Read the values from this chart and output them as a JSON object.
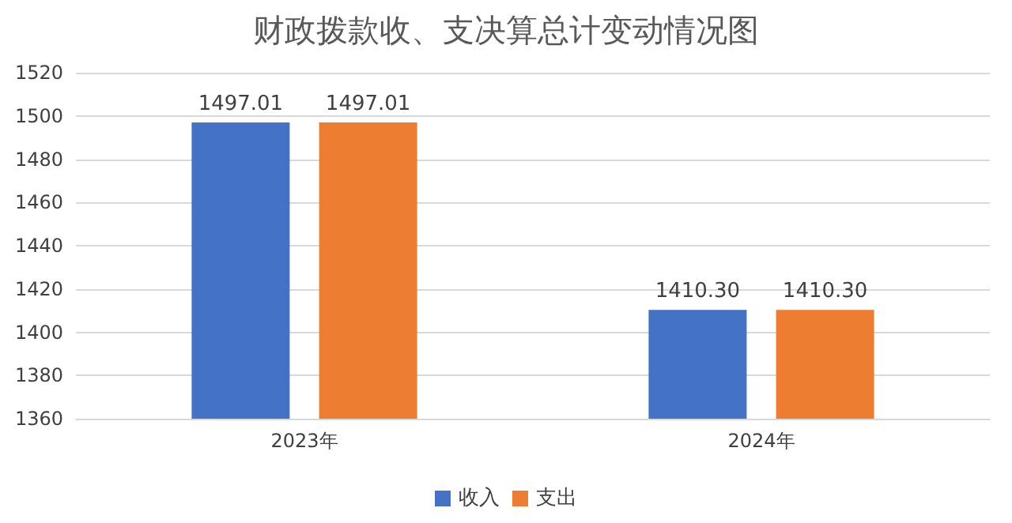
{
  "chart_data": {
    "type": "bar",
    "title": "财政拨款收、支决算总计变动情况图",
    "categories": [
      "2023年",
      "2024年"
    ],
    "series": [
      {
        "name": "收入",
        "color": "#4472c4",
        "values": [
          1497.01,
          1410.3
        ],
        "value_labels": [
          "1497.01",
          "1410.30"
        ]
      },
      {
        "name": "支出",
        "color": "#ed7d31",
        "values": [
          1497.01,
          1410.3
        ],
        "value_labels": [
          "1497.01",
          "1410.30"
        ]
      }
    ],
    "ylim": [
      1360,
      1520
    ],
    "yticks": [
      1360,
      1380,
      1400,
      1420,
      1440,
      1460,
      1480,
      1500,
      1520
    ],
    "grid": "y",
    "legend": "bottom"
  }
}
